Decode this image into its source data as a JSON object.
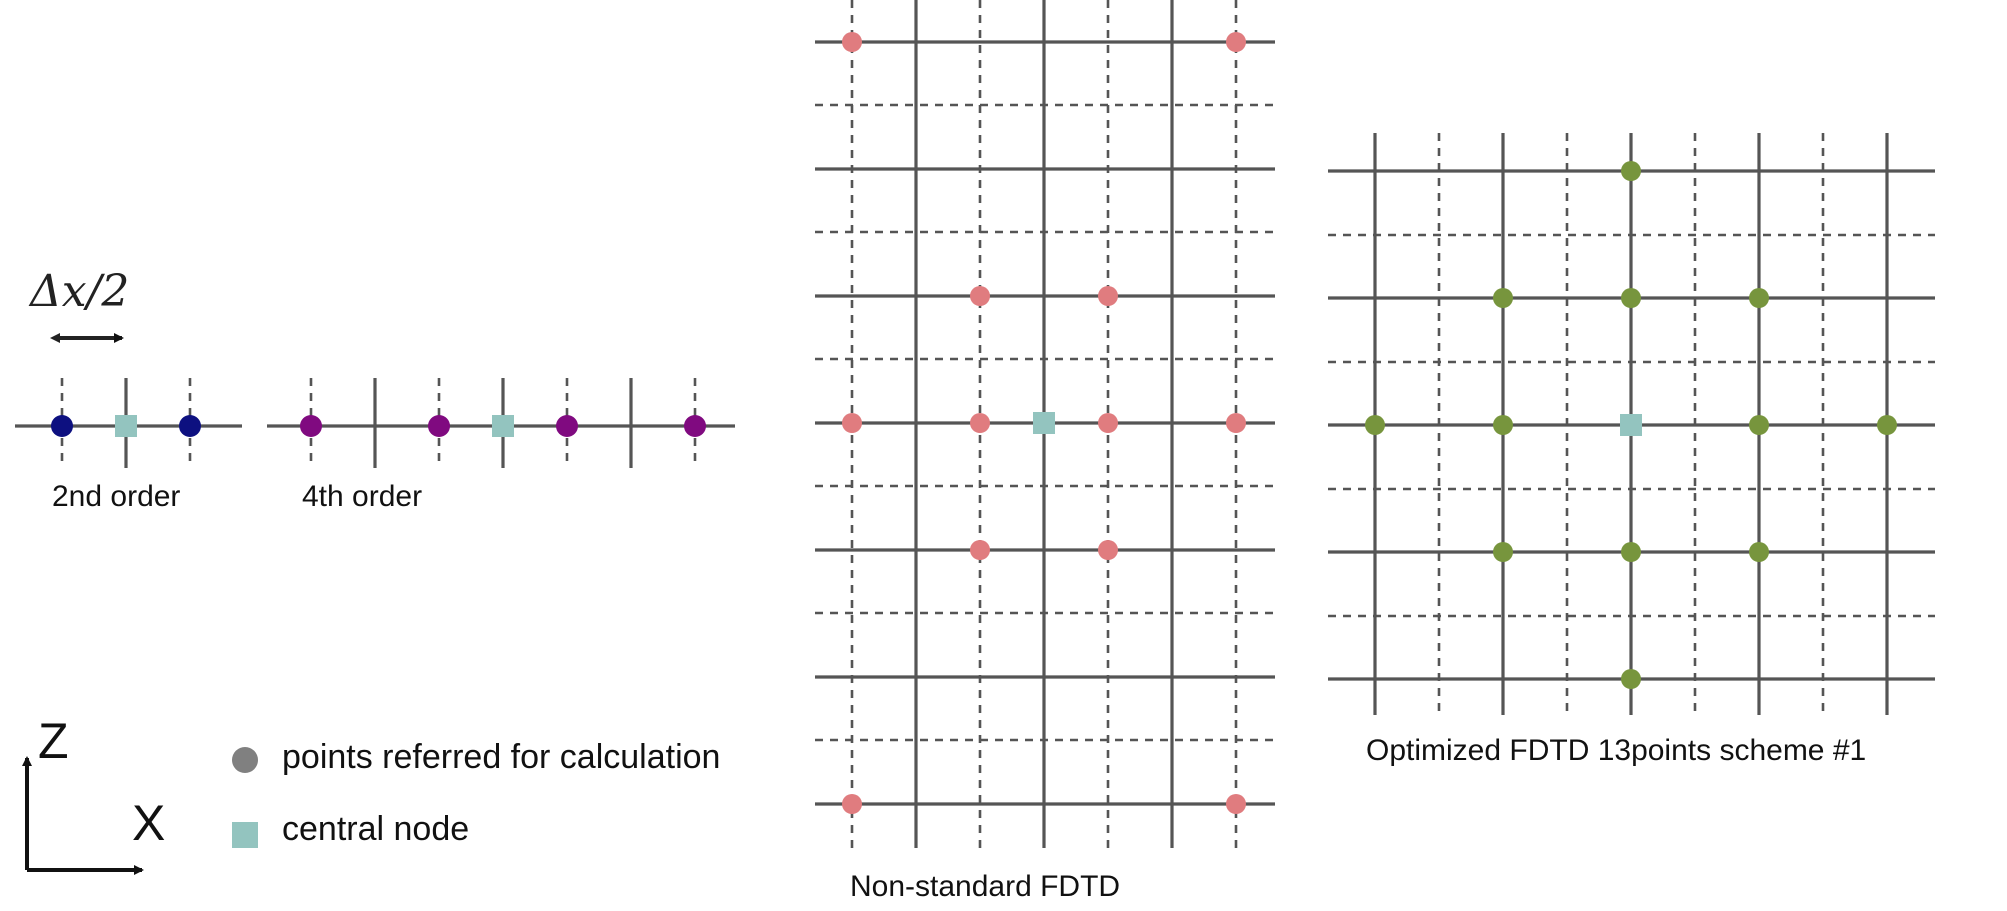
{
  "colors": {
    "grid_line": "#555555",
    "node_2nd": "#0d1080",
    "node_4th": "#800a80",
    "node_nonstandard": "#e07c7f",
    "node_optimized": "#77953d",
    "central_node": "#93c4bf",
    "legend_point": "#808080"
  },
  "spacing_label": "Δx/2",
  "stencil_2nd": {
    "label": "2nd order"
  },
  "stencil_4th": {
    "label": "4th order"
  },
  "nonstandard": {
    "label": "Non-standard FDTD"
  },
  "optimized": {
    "label": "Optimized FDTD 13points scheme #1"
  },
  "axes": {
    "z_label": "Z",
    "x_label": "X"
  },
  "legend": {
    "points_label": "points referred for calculation",
    "central_label": "central node"
  }
}
